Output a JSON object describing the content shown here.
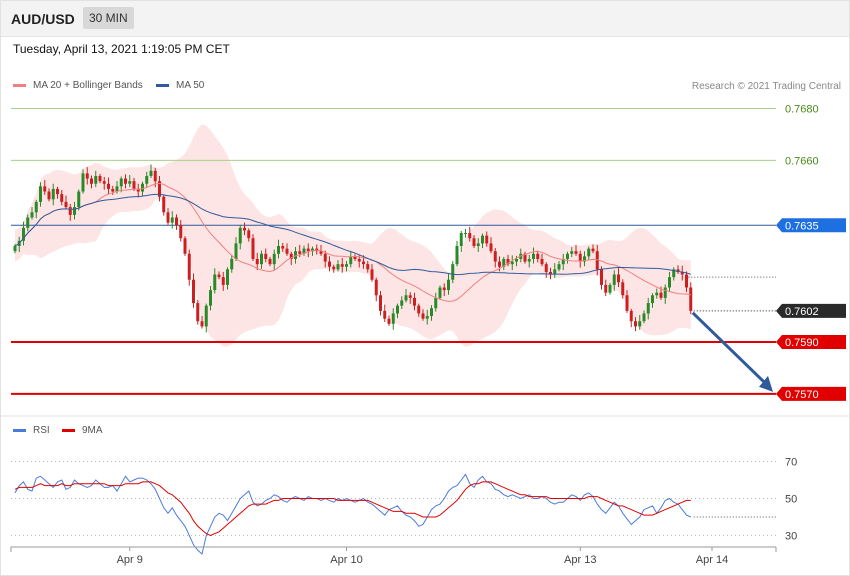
{
  "header": {
    "symbol": "AUD/USD",
    "timeframe": "30 MIN",
    "datetime": "Tuesday, April 13, 2021 1:19:05 PM CET"
  },
  "legend": {
    "ma20": {
      "label": "MA 20 + Bollinger Bands",
      "color": "#f08080"
    },
    "ma50": {
      "label": "MA 50",
      "color": "#2f5a9b"
    },
    "credit": "Research © 2021 Trading Central"
  },
  "rsi_legend": {
    "rsi": {
      "label": "RSI",
      "color": "#4a7bd8"
    },
    "ma9": {
      "label": "9MA",
      "color": "#e00000"
    }
  },
  "colors": {
    "up": "#2a8a2a",
    "down": "#cc2020",
    "band": "#fde2e2"
  },
  "chart_data": [
    {
      "type": "candlestick",
      "ylim": [
        0.7563,
        0.7691
      ],
      "x_ticks": [
        {
          "label": "Apr 9",
          "index": 27
        },
        {
          "label": "Apr 10",
          "index": 78
        },
        {
          "label": "Apr 13",
          "index": 133
        },
        {
          "label": "Apr 14",
          "index": 164
        }
      ],
      "levels": [
        {
          "value": 0.768,
          "label": "0.7680",
          "kind": "resistance-green"
        },
        {
          "value": 0.766,
          "label": "0.7660",
          "kind": "resistance-green"
        },
        {
          "value": 0.7635,
          "label": "0.7635",
          "kind": "pivot-blue"
        },
        {
          "value": 0.7602,
          "label": "0.7602",
          "kind": "last-price"
        },
        {
          "value": 0.759,
          "label": "0.7590",
          "kind": "support-red"
        },
        {
          "value": 0.757,
          "label": "0.7570",
          "kind": "support-red"
        }
      ],
      "close": [
        0.7627,
        0.7629,
        0.7634,
        0.7638,
        0.764,
        0.7644,
        0.765,
        0.7648,
        0.7645,
        0.7649,
        0.7647,
        0.7644,
        0.7642,
        0.7639,
        0.7642,
        0.7648,
        0.7655,
        0.7653,
        0.7651,
        0.7654,
        0.7652,
        0.7651,
        0.7649,
        0.7648,
        0.765,
        0.7653,
        0.7651,
        0.7652,
        0.7649,
        0.7648,
        0.7651,
        0.7654,
        0.7656,
        0.7652,
        0.7646,
        0.764,
        0.7636,
        0.7638,
        0.7635,
        0.763,
        0.7624,
        0.7614,
        0.7605,
        0.7598,
        0.7596,
        0.7604,
        0.761,
        0.7616,
        0.7615,
        0.7612,
        0.7618,
        0.7622,
        0.7628,
        0.7634,
        0.7633,
        0.763,
        0.7622,
        0.762,
        0.7624,
        0.7622,
        0.762,
        0.7624,
        0.7627,
        0.7626,
        0.7624,
        0.7622,
        0.7625,
        0.7624,
        0.7626,
        0.7625,
        0.7626,
        0.7625,
        0.7624,
        0.7621,
        0.7619,
        0.7618,
        0.762,
        0.7619,
        0.762,
        0.7623,
        0.7622,
        0.7621,
        0.762,
        0.7618,
        0.7614,
        0.7608,
        0.7602,
        0.7599,
        0.7597,
        0.7601,
        0.7604,
        0.7606,
        0.7608,
        0.7607,
        0.7604,
        0.7601,
        0.7599,
        0.76,
        0.7603,
        0.7607,
        0.7611,
        0.761,
        0.7614,
        0.762,
        0.7627,
        0.7632,
        0.7632,
        0.763,
        0.7627,
        0.7628,
        0.7631,
        0.7628,
        0.7625,
        0.7621,
        0.7619,
        0.7622,
        0.762,
        0.7621,
        0.7622,
        0.7624,
        0.7621,
        0.7622,
        0.7624,
        0.7622,
        0.762,
        0.7617,
        0.7616,
        0.7618,
        0.762,
        0.7622,
        0.7624,
        0.7625,
        0.7624,
        0.7621,
        0.7623,
        0.7626,
        0.7625,
        0.7618,
        0.7612,
        0.7609,
        0.7612,
        0.7616,
        0.7613,
        0.7608,
        0.7602,
        0.7598,
        0.7596,
        0.7598,
        0.7601,
        0.7605,
        0.7608,
        0.7609,
        0.7607,
        0.7611,
        0.7615,
        0.7618,
        0.7617,
        0.7616,
        0.7611,
        0.7602
      ]
    },
    {
      "type": "line",
      "ylim": [
        20,
        80
      ],
      "y_ticks": [
        30,
        50,
        70
      ],
      "series": [
        {
          "name": "RSI",
          "values": [
            53,
            57,
            59,
            55,
            54,
            61,
            62,
            60,
            58,
            56,
            59,
            60,
            55,
            56,
            60,
            58,
            57,
            56,
            57,
            60,
            58,
            56,
            56,
            57,
            54,
            58,
            62,
            59,
            60,
            61,
            61,
            60,
            58,
            55,
            50,
            45,
            42,
            45,
            41,
            38,
            35,
            30,
            25,
            22,
            20,
            30,
            35,
            40,
            42,
            41,
            38,
            42,
            46,
            50,
            52,
            54,
            48,
            46,
            47,
            49,
            50,
            52,
            51,
            49,
            48,
            50,
            51,
            50,
            49,
            51,
            50,
            50,
            49,
            50,
            49,
            48,
            50,
            49,
            50,
            49,
            48,
            49,
            50,
            48,
            47,
            45,
            43,
            41,
            44,
            45,
            46,
            43,
            41,
            40,
            38,
            35,
            36,
            40,
            44,
            46,
            47,
            50,
            54,
            56,
            57,
            60,
            63,
            58,
            56,
            60,
            62,
            59,
            58,
            55,
            54,
            52,
            51,
            52,
            51,
            50,
            51,
            52,
            50,
            50,
            51,
            50,
            48,
            47,
            48,
            48,
            50,
            52,
            51,
            49,
            52,
            53,
            51,
            47,
            44,
            42,
            45,
            48,
            46,
            42,
            39,
            36,
            38,
            40,
            44,
            45,
            46,
            42,
            45,
            49,
            50,
            48,
            47,
            44,
            41,
            40
          ]
        },
        {
          "name": "9MA",
          "values": [
            55,
            56,
            56,
            56,
            56,
            57,
            58,
            57,
            57,
            57,
            57,
            58,
            57,
            57,
            58,
            58,
            58,
            58,
            58,
            58,
            58,
            58,
            57,
            57,
            57,
            57,
            58,
            58,
            58,
            58,
            59,
            59,
            59,
            58,
            57,
            55,
            53,
            52,
            50,
            48,
            45,
            42,
            38,
            35,
            33,
            31,
            30,
            31,
            32,
            34,
            36,
            38,
            40,
            42,
            44,
            46,
            47,
            47,
            47,
            47,
            48,
            49,
            49,
            50,
            50,
            50,
            50,
            50,
            50,
            50,
            50,
            50,
            50,
            50,
            50,
            50,
            49,
            49,
            49,
            49,
            49,
            49,
            49,
            49,
            48,
            47,
            46,
            45,
            44,
            43,
            43,
            43,
            42,
            42,
            42,
            41,
            40,
            40,
            40,
            40,
            41,
            43,
            45,
            47,
            49,
            52,
            55,
            57,
            58,
            58,
            59,
            59,
            59,
            58,
            57,
            56,
            55,
            54,
            53,
            52,
            52,
            51,
            51,
            51,
            51,
            51,
            50,
            50,
            50,
            50,
            50,
            50,
            50,
            50,
            50,
            51,
            51,
            51,
            50,
            49,
            48,
            47,
            46,
            46,
            45,
            44,
            43,
            42,
            41,
            41,
            41,
            42,
            43,
            44,
            45,
            46,
            47,
            48,
            49,
            49
          ]
        }
      ]
    }
  ]
}
